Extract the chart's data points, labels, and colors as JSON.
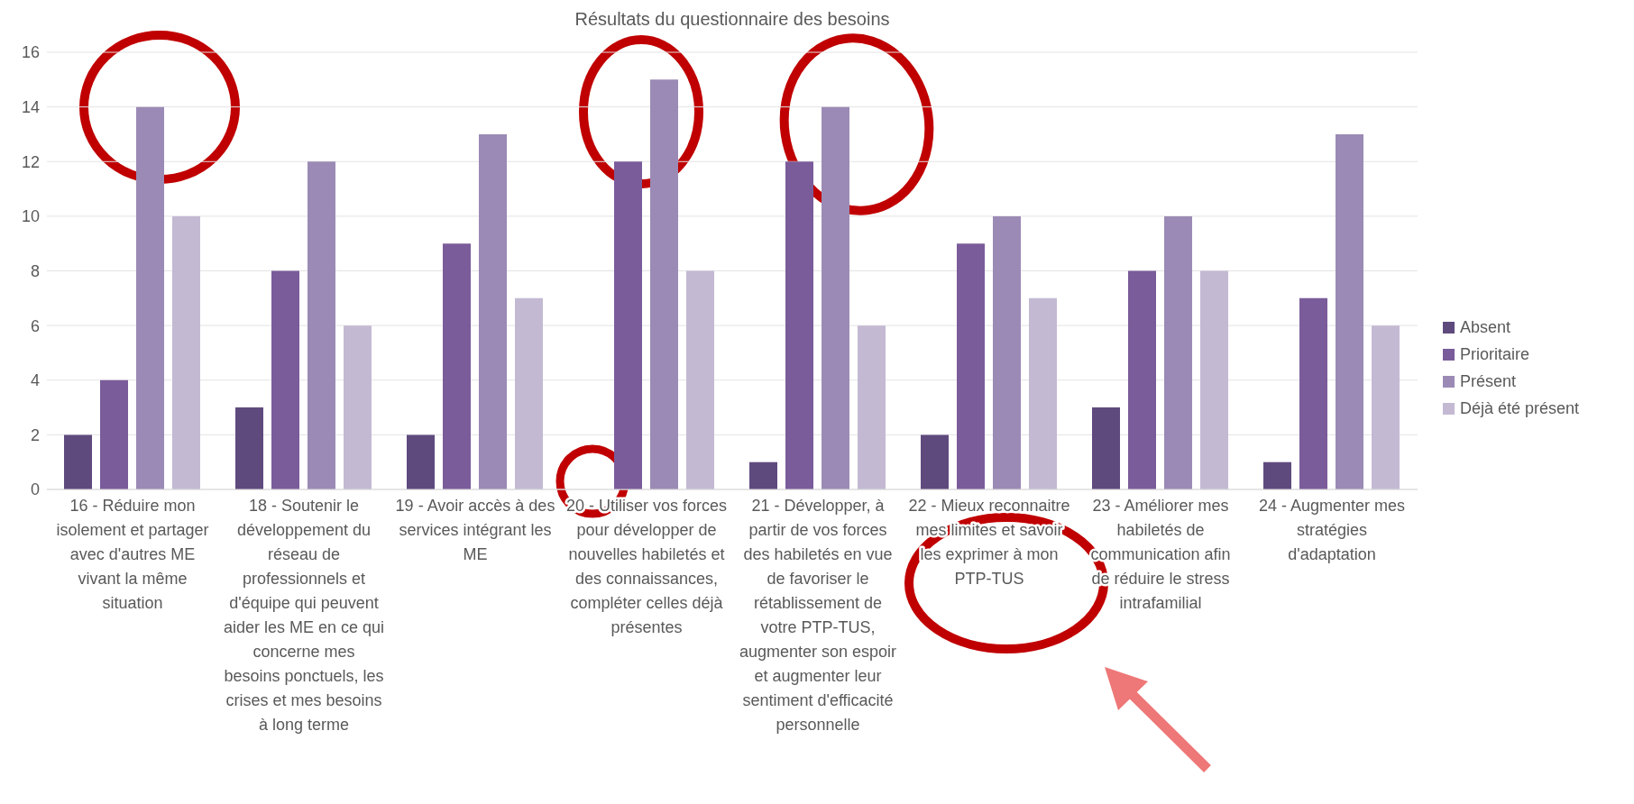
{
  "chart_data": {
    "type": "bar",
    "title": "Résultats du questionnaire des besoins",
    "categories": [
      "16 - Réduire mon isolement et partager avec d'autres ME vivant la même situation",
      "18 - Soutenir le développement du réseau de professionnels et d'équipe qui peuvent aider les ME en ce qui concerne mes besoins ponctuels, les crises et mes besoins à long terme",
      "19 - Avoir accès à des services intégrant les ME",
      "20 - Utiliser vos forces pour développer de nouvelles habiletés et des connaissances, compléter celles déjà présentes",
      "21 - Développer, à partir de vos forces des habiletés en vue de favoriser le rétablissement de votre PTP-TUS, augmenter son espoir et augmenter leur sentiment d'efficacité personnelle",
      "22 - Mieux reconnaitre mes limites et savoir les exprimer à mon PTP-TUS",
      "23 - Améliorer mes habiletés de communication afin de réduire le stress intrafamilial",
      "24 - Augmenter mes stratégies d'adaptation"
    ],
    "series": [
      {
        "name": "Absent",
        "color": "#5f4a7e",
        "values": [
          2,
          3,
          2,
          0,
          1,
          2,
          3,
          1
        ]
      },
      {
        "name": "Prioritaire",
        "color": "#7a5c9a",
        "values": [
          4,
          8,
          9,
          12,
          12,
          9,
          8,
          7
        ]
      },
      {
        "name": "Présent",
        "color": "#9b8ab5",
        "values": [
          14,
          12,
          13,
          15,
          14,
          10,
          10,
          13
        ]
      },
      {
        "name": "Déjà été présent",
        "color": "#c4b9d3",
        "values": [
          10,
          6,
          7,
          8,
          6,
          7,
          8,
          6
        ]
      }
    ],
    "ylim": [
      0,
      16
    ],
    "yticks": [
      0,
      2,
      4,
      6,
      8,
      10,
      12,
      14,
      16
    ],
    "grid": "y",
    "legend": "right"
  }
}
